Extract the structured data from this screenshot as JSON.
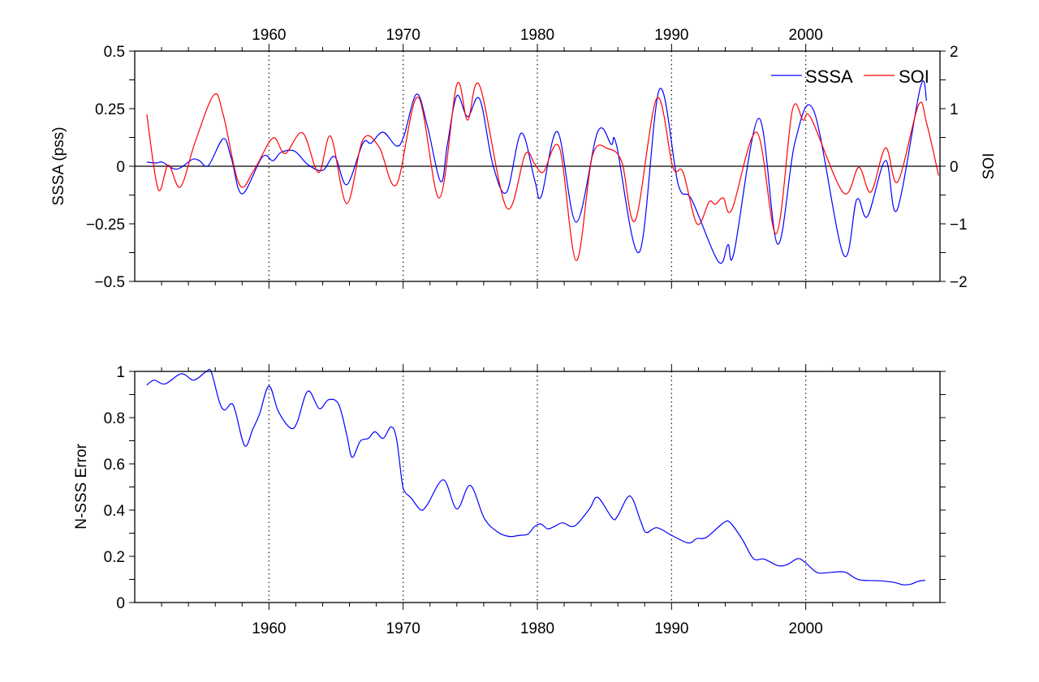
{
  "chart_data": [
    {
      "type": "line",
      "xlim": [
        1950,
        2010
      ],
      "x_ticks": [
        1960,
        1970,
        1980,
        1990,
        2000
      ],
      "x_tick_labels": [
        "1960",
        "1970",
        "1980",
        "1990",
        "2000"
      ],
      "ylabel": "SSSA (pss)",
      "ylim": [
        -0.5,
        0.5
      ],
      "y_tick_labels": [
        "0.5",
        "0.25",
        "0",
        "−0.25",
        "−0.5"
      ],
      "y_ticks": [
        0.5,
        0.25,
        0,
        -0.25,
        -0.5
      ],
      "y2label": "SOI",
      "y2lim": [
        -2,
        2
      ],
      "y2_tick_labels": [
        "2",
        "1",
        "0",
        "−1",
        "−2"
      ],
      "y2_ticks": [
        2,
        1,
        0,
        -1,
        -2
      ],
      "grid": "vertical dotted at labeled years",
      "zero_line": true,
      "legend": "top-right",
      "series": [
        {
          "name": "SSSA",
          "axis": "left",
          "color": "#0000ff",
          "points": [
            [
              1950.9,
              0.018
            ],
            [
              1951.6,
              0.014
            ],
            [
              1952.05,
              0.018
            ],
            [
              1952.85,
              -0.01
            ],
            [
              1953.4,
              -0.007
            ],
            [
              1954.3,
              0.03
            ],
            [
              1954.8,
              0.025
            ],
            [
              1955.5,
              0.004
            ],
            [
              1956.6,
              0.12
            ],
            [
              1957.2,
              0.035
            ],
            [
              1958.0,
              -0.12
            ],
            [
              1959.5,
              0.04
            ],
            [
              1960.3,
              0.024
            ],
            [
              1960.9,
              0.06
            ],
            [
              1961.9,
              0.066
            ],
            [
              1962.9,
              0.007
            ],
            [
              1964.0,
              -0.018
            ],
            [
              1964.9,
              0.042
            ],
            [
              1965.8,
              -0.08
            ],
            [
              1967.0,
              0.1
            ],
            [
              1967.6,
              0.1
            ],
            [
              1968.5,
              0.148
            ],
            [
              1969.5,
              0.088
            ],
            [
              1970.05,
              0.13
            ],
            [
              1971.0,
              0.313
            ],
            [
              1971.8,
              0.176
            ],
            [
              1972.8,
              -0.067
            ],
            [
              1973.3,
              0.095
            ],
            [
              1974.0,
              0.306
            ],
            [
              1974.8,
              0.215
            ],
            [
              1975.7,
              0.292
            ],
            [
              1976.7,
              0.003
            ],
            [
              1977.7,
              -0.113
            ],
            [
              1978.8,
              0.144
            ],
            [
              1979.8,
              -0.06
            ],
            [
              1980.3,
              -0.13
            ],
            [
              1981.5,
              0.15
            ],
            [
              1982.9,
              -0.243
            ],
            [
              1984.5,
              0.15
            ],
            [
              1985.5,
              0.095
            ],
            [
              1985.9,
              0.092
            ],
            [
              1987.6,
              -0.373
            ],
            [
              1989.1,
              0.334
            ],
            [
              1990.5,
              -0.08
            ],
            [
              1991.5,
              -0.145
            ],
            [
              1993.5,
              -0.415
            ],
            [
              1994.2,
              -0.34
            ],
            [
              1994.65,
              -0.376
            ],
            [
              1996.5,
              0.208
            ],
            [
              1997.9,
              -0.338
            ],
            [
              1999.2,
              0.105
            ],
            [
              2000.6,
              0.24
            ],
            [
              2002.8,
              -0.383
            ],
            [
              2003.8,
              -0.144
            ],
            [
              2004.6,
              -0.218
            ],
            [
              2005.95,
              0.025
            ],
            [
              2006.8,
              -0.19
            ],
            [
              2008.55,
              0.345
            ],
            [
              2009.0,
              0.285
            ]
          ]
        },
        {
          "name": "SOI",
          "axis": "right",
          "color": "#ff0000",
          "points": [
            [
              1950.9,
              0.9
            ],
            [
              1951.75,
              -0.4
            ],
            [
              1952.5,
              0.02
            ],
            [
              1953.4,
              -0.36
            ],
            [
              1954.5,
              0.42
            ],
            [
              1955.9,
              1.24
            ],
            [
              1956.6,
              0.89
            ],
            [
              1957.8,
              -0.32
            ],
            [
              1958.9,
              -0.06
            ],
            [
              1960.3,
              0.49
            ],
            [
              1961.2,
              0.22
            ],
            [
              1962.5,
              0.58
            ],
            [
              1963.7,
              -0.11
            ],
            [
              1964.6,
              0.52
            ],
            [
              1965.8,
              -0.65
            ],
            [
              1967.0,
              0.46
            ],
            [
              1968.2,
              0.34
            ],
            [
              1969.5,
              -0.32
            ],
            [
              1971.1,
              1.2
            ],
            [
              1972.7,
              -0.55
            ],
            [
              1974.0,
              1.42
            ],
            [
              1974.8,
              0.8
            ],
            [
              1975.7,
              1.4
            ],
            [
              1977.7,
              -0.72
            ],
            [
              1979.1,
              0.21
            ],
            [
              1979.8,
              0.04
            ],
            [
              1980.45,
              -0.1
            ],
            [
              1981.65,
              0.32
            ],
            [
              1982.9,
              -1.64
            ],
            [
              1984.1,
              0.18
            ],
            [
              1985.3,
              0.3
            ],
            [
              1986.3,
              0.07
            ],
            [
              1987.3,
              -0.94
            ],
            [
              1988.9,
              1.18
            ],
            [
              1990.1,
              -0.02
            ],
            [
              1990.85,
              -0.1
            ],
            [
              1991.9,
              -1.0
            ],
            [
              1992.8,
              -0.62
            ],
            [
              1993.25,
              -0.66
            ],
            [
              1993.85,
              -0.55
            ],
            [
              1994.5,
              -0.75
            ],
            [
              1996.35,
              0.59
            ],
            [
              1997.8,
              -1.17
            ],
            [
              1999.0,
              0.97
            ],
            [
              1999.8,
              0.8
            ],
            [
              2000.4,
              0.83
            ],
            [
              2002.8,
              -0.46
            ],
            [
              2003.95,
              -0.02
            ],
            [
              2004.85,
              -0.45
            ],
            [
              2005.95,
              0.32
            ],
            [
              2006.85,
              -0.27
            ],
            [
              2008.4,
              1.06
            ],
            [
              2009.0,
              0.75
            ],
            [
              2009.9,
              -0.16
            ]
          ]
        }
      ]
    },
    {
      "type": "line",
      "xlim": [
        1950,
        2010
      ],
      "x_ticks": [
        1960,
        1970,
        1980,
        1990,
        2000
      ],
      "x_tick_labels": [
        "1960",
        "1970",
        "1980",
        "1990",
        "2000"
      ],
      "ylabel": "N-SSS Error",
      "ylim": [
        0,
        1
      ],
      "y_ticks": [
        1,
        0.8,
        0.6,
        0.4,
        0.2,
        0
      ],
      "y_tick_labels": [
        "1",
        "0.8",
        "0.6",
        "0.4",
        "0.2",
        "0"
      ],
      "grid": "vertical dotted at labeled years",
      "series": [
        {
          "color": "#0000ff",
          "points": [
            [
              1950.9,
              0.941
            ],
            [
              1951.45,
              0.962
            ],
            [
              1952.26,
              0.946
            ],
            [
              1953.47,
              0.99
            ],
            [
              1954.4,
              0.962
            ],
            [
              1955.3,
              0.998
            ],
            [
              1955.7,
              0.998
            ],
            [
              1956.3,
              0.869
            ],
            [
              1956.7,
              0.833
            ],
            [
              1957.2,
              0.861
            ],
            [
              1957.5,
              0.827
            ],
            [
              1958.2,
              0.678
            ],
            [
              1958.8,
              0.751
            ],
            [
              1959.3,
              0.816
            ],
            [
              1960.0,
              0.937
            ],
            [
              1960.7,
              0.827
            ],
            [
              1961.6,
              0.755
            ],
            [
              1962.1,
              0.78
            ],
            [
              1962.9,
              0.915
            ],
            [
              1963.75,
              0.839
            ],
            [
              1964.45,
              0.878
            ],
            [
              1965.2,
              0.857
            ],
            [
              1965.8,
              0.725
            ],
            [
              1966.2,
              0.628
            ],
            [
              1966.8,
              0.698
            ],
            [
              1967.4,
              0.71
            ],
            [
              1967.9,
              0.739
            ],
            [
              1968.5,
              0.71
            ],
            [
              1969.1,
              0.76
            ],
            [
              1969.5,
              0.71
            ],
            [
              1969.9,
              0.528
            ],
            [
              1970.1,
              0.481
            ],
            [
              1970.6,
              0.452
            ],
            [
              1971.3,
              0.401
            ],
            [
              1971.8,
              0.423
            ],
            [
              1973.0,
              0.531
            ],
            [
              1974.0,
              0.405
            ],
            [
              1975.0,
              0.507
            ],
            [
              1976.05,
              0.364
            ],
            [
              1977.05,
              0.305
            ],
            [
              1977.9,
              0.286
            ],
            [
              1978.7,
              0.291
            ],
            [
              1979.3,
              0.296
            ],
            [
              1979.8,
              0.329
            ],
            [
              1980.26,
              0.34
            ],
            [
              1980.76,
              0.319
            ],
            [
              1981.27,
              0.329
            ],
            [
              1981.87,
              0.345
            ],
            [
              1982.77,
              0.331
            ],
            [
              1983.88,
              0.405
            ],
            [
              1984.5,
              0.455
            ],
            [
              1985.6,
              0.364
            ],
            [
              1986.0,
              0.376
            ],
            [
              1986.9,
              0.461
            ],
            [
              1987.7,
              0.352
            ],
            [
              1988.1,
              0.303
            ],
            [
              1988.9,
              0.324
            ],
            [
              1990.0,
              0.291
            ],
            [
              1991.25,
              0.258
            ],
            [
              1991.9,
              0.277
            ],
            [
              1992.6,
              0.282
            ],
            [
              1993.9,
              0.346
            ],
            [
              1994.4,
              0.344
            ],
            [
              1995.3,
              0.27
            ],
            [
              1996.1,
              0.19
            ],
            [
              1996.9,
              0.188
            ],
            [
              1997.9,
              0.16
            ],
            [
              1998.6,
              0.164
            ],
            [
              1999.4,
              0.19
            ],
            [
              1999.9,
              0.176
            ],
            [
              2000.7,
              0.135
            ],
            [
              2001.1,
              0.127
            ],
            [
              2001.95,
              0.131
            ],
            [
              2002.95,
              0.131
            ],
            [
              2003.95,
              0.099
            ],
            [
              2005.56,
              0.094
            ],
            [
              2006.57,
              0.087
            ],
            [
              2007.27,
              0.077
            ],
            [
              2007.87,
              0.08
            ],
            [
              2008.37,
              0.092
            ],
            [
              2008.9,
              0.096
            ]
          ]
        }
      ]
    }
  ]
}
